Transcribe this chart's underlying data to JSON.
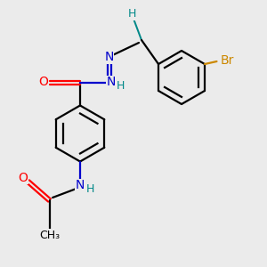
{
  "bg_color": "#ebebeb",
  "atom_colors": {
    "C": "#000000",
    "N": "#0000cc",
    "O": "#ff0000",
    "Br": "#cc8800",
    "H": "#008888"
  },
  "lw": 1.6,
  "fs": 10,
  "fs_small": 9
}
